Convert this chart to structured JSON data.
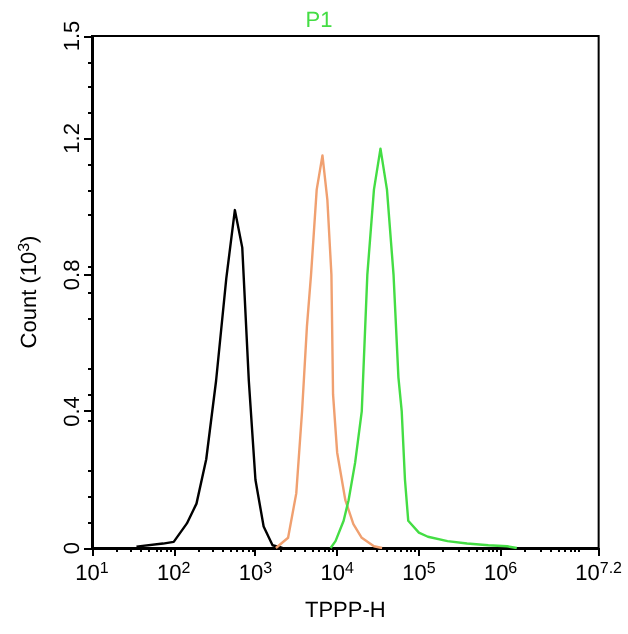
{
  "chart_data": {
    "type": "line",
    "xlabel": "TPPP-H",
    "ylabel": "Count (10$^{3}$)",
    "log": "x",
    "xlim": [
      10,
      15848932
    ],
    "xticks": [
      {
        "value": 10,
        "label": "10$^{1}$"
      },
      {
        "value": 100,
        "label": "10$^{2}$"
      },
      {
        "value": 1000,
        "label": "10$^{3}$"
      },
      {
        "value": 10000,
        "label": "10$^{4}$"
      },
      {
        "value": 100000,
        "label": "10$^{5}$"
      },
      {
        "value": 1000000,
        "label": "10$^{6}$"
      },
      {
        "value": 15848932,
        "label": "10$^{7.2}$"
      }
    ],
    "ylim": [
      0,
      1.5
    ],
    "yticks": [
      0,
      0.4,
      0.8,
      1.2,
      1.5
    ],
    "grid": false,
    "legend": "top",
    "marker": "none",
    "line_style": "solid",
    "series": [
      {
        "color": "#000000",
        "x": [
          35,
          74,
          100,
          145,
          190,
          250,
          330,
          440,
          560,
          690,
          830,
          1000,
          1260,
          1620,
          2140
        ],
        "values": [
          0.004,
          0.013,
          0.018,
          0.072,
          0.13,
          0.26,
          0.49,
          0.79,
          0.99,
          0.88,
          0.49,
          0.2,
          0.063,
          0.008,
          0
        ]
      },
      {
        "color": "#f0a070",
        "x": [
          1780,
          2510,
          3160,
          3720,
          4270,
          4790,
          5620,
          6610,
          7590,
          8510,
          8910,
          10000,
          12600,
          15800,
          20000,
          28200,
          35500
        ],
        "values": [
          0,
          0.03,
          0.16,
          0.4,
          0.65,
          0.8,
          1.05,
          1.15,
          1.02,
          0.8,
          0.45,
          0.28,
          0.14,
          0.07,
          0.03,
          0.005,
          0
        ]
      },
      {
        "name": "P1",
        "color": "#44dd44",
        "x": [
          8320,
          9550,
          12000,
          13800,
          16600,
          20000,
          23400,
          28200,
          33900,
          40700,
          49000,
          56200,
          61700,
          67600,
          74100,
          100000,
          129000,
          224000,
          389000,
          708000,
          1200000,
          1580000
        ],
        "values": [
          0,
          0.02,
          0.08,
          0.14,
          0.25,
          0.4,
          0.8,
          1.05,
          1.17,
          1.05,
          0.8,
          0.5,
          0.4,
          0.2,
          0.08,
          0.045,
          0.033,
          0.02,
          0.013,
          0.008,
          0.005,
          0
        ]
      }
    ]
  }
}
